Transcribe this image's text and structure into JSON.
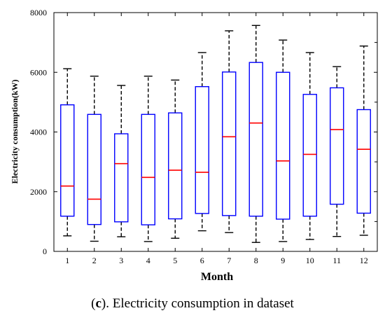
{
  "chart_data": {
    "type": "boxplot",
    "xlabel": "Month",
    "ylabel": "Electricity consumption(kW)",
    "ylim": [
      0,
      8000
    ],
    "yticks": [
      0,
      2000,
      4000,
      6000,
      8000
    ],
    "categories": [
      "1",
      "2",
      "3",
      "4",
      "5",
      "6",
      "7",
      "8",
      "9",
      "10",
      "11",
      "12"
    ],
    "boxes": [
      {
        "min": 520,
        "q1": 1180,
        "median": 2190,
        "q3": 4910,
        "max": 6120
      },
      {
        "min": 340,
        "q1": 900,
        "median": 1750,
        "q3": 4590,
        "max": 5870
      },
      {
        "min": 490,
        "q1": 990,
        "median": 2940,
        "q3": 3940,
        "max": 5560
      },
      {
        "min": 330,
        "q1": 890,
        "median": 2480,
        "q3": 4590,
        "max": 5870
      },
      {
        "min": 440,
        "q1": 1090,
        "median": 2720,
        "q3": 4640,
        "max": 5740
      },
      {
        "min": 690,
        "q1": 1270,
        "median": 2650,
        "q3": 5520,
        "max": 6660
      },
      {
        "min": 630,
        "q1": 1200,
        "median": 3840,
        "q3": 6010,
        "max": 7390
      },
      {
        "min": 300,
        "q1": 1180,
        "median": 4300,
        "q3": 6330,
        "max": 7570
      },
      {
        "min": 330,
        "q1": 1080,
        "median": 3030,
        "q3": 6000,
        "max": 7080
      },
      {
        "min": 400,
        "q1": 1180,
        "median": 3250,
        "q3": 5260,
        "max": 6660
      },
      {
        "min": 500,
        "q1": 1580,
        "median": 4080,
        "q3": 5480,
        "max": 6190
      },
      {
        "min": 540,
        "q1": 1280,
        "median": 3420,
        "q3": 4750,
        "max": 6880
      }
    ],
    "box_color": "#0000ff",
    "median_color": "#ff0000",
    "whisker_color": "#000000",
    "grid": false
  },
  "caption": {
    "label": "c",
    "text": ". Electricity consumption in dataset"
  }
}
